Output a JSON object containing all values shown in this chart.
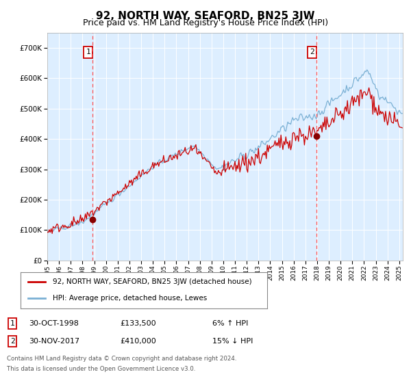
{
  "title": "92, NORTH WAY, SEAFORD, BN25 3JW",
  "subtitle": "Price paid vs. HM Land Registry's House Price Index (HPI)",
  "hpi_label": "HPI: Average price, detached house, Lewes",
  "price_label": "92, NORTH WAY, SEAFORD, BN25 3JW (detached house)",
  "sale1_date_label": "30-OCT-1998",
  "sale1_price": 133500,
  "sale1_price_label": "£133,500",
  "sale1_hpi_label": "6% ↑ HPI",
  "sale2_date_label": "30-NOV-2017",
  "sale2_price": 410000,
  "sale2_price_label": "£410,000",
  "sale2_hpi_label": "15% ↓ HPI",
  "sale1_year": 1998.83,
  "sale2_year": 2017.92,
  "hpi_color": "#7ab0d4",
  "price_color": "#cc0000",
  "bg_color": "#ddeeff",
  "vline_color": "#ff5555",
  "marker_color": "#880000",
  "footnote": "Contains HM Land Registry data © Crown copyright and database right 2024.\nThis data is licensed under the Open Government Licence v3.0.",
  "ylim_min": 0,
  "ylim_max": 750000,
  "title_fontsize": 11,
  "subtitle_fontsize": 9
}
